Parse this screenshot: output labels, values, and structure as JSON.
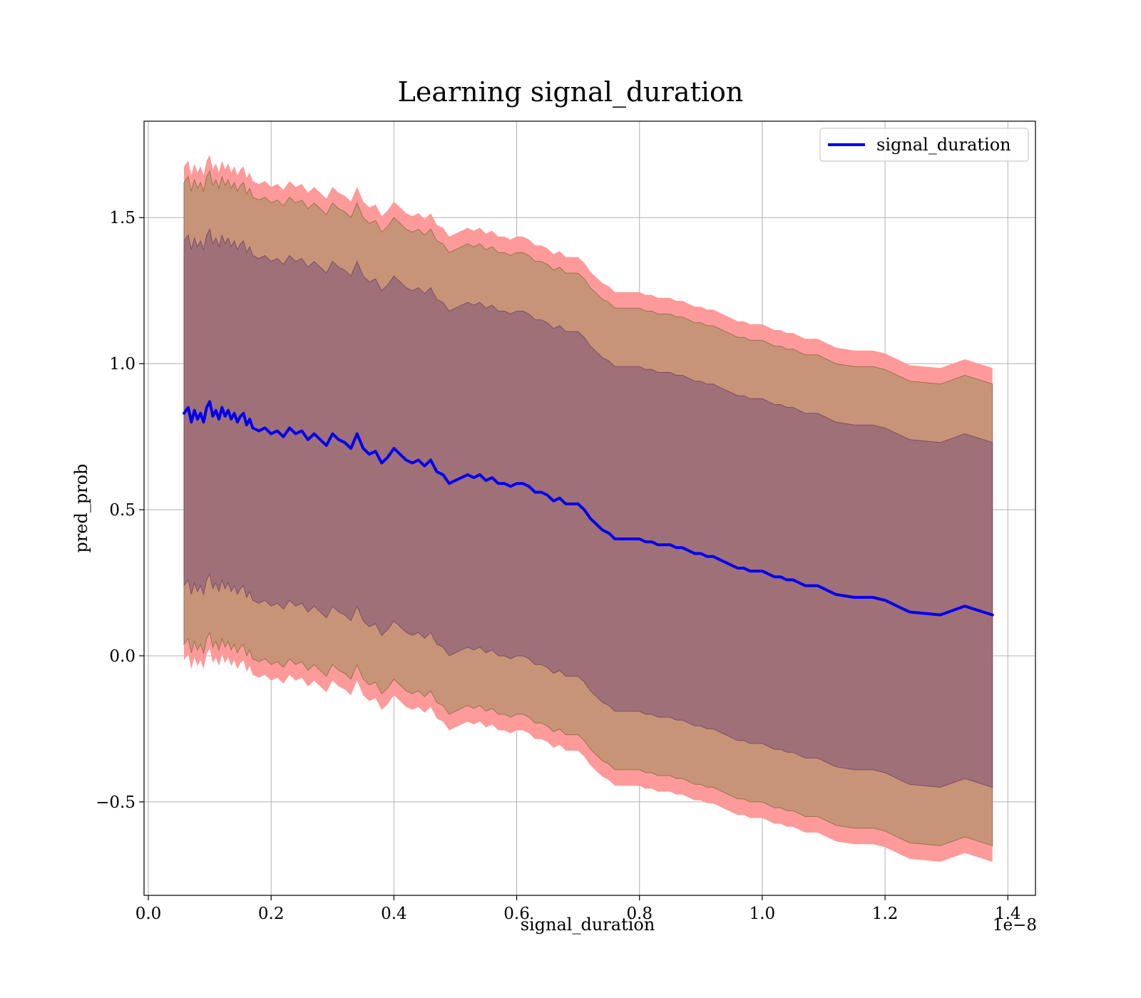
{
  "chart_data": {
    "type": "line",
    "title": "Learning signal_duration",
    "xlabel": "signal_duration",
    "ylabel": "pred_prob",
    "x_offset_label": "1e−8",
    "xlim": [
      -0.007,
      1.445
    ],
    "ylim": [
      -0.82,
      1.83
    ],
    "grid": true,
    "legend_position": "top-right",
    "x_ticks": [
      0.0,
      0.2,
      0.4,
      0.6,
      0.8,
      1.0,
      1.2,
      1.4
    ],
    "x_tick_labels": [
      "0.0",
      "0.2",
      "0.4",
      "0.6",
      "0.8",
      "1.0",
      "1.2",
      "1.4"
    ],
    "y_ticks": [
      -0.5,
      0.0,
      0.5,
      1.0,
      1.5
    ],
    "y_tick_labels": [
      "−0.5",
      "0.0",
      "0.5",
      "1.0",
      "1.5"
    ],
    "colors": {
      "line": "#0000ee",
      "band_outer": "#ff9a9a",
      "band_middle": "#c89478",
      "band_inner": "#a07078"
    },
    "series": [
      {
        "name": "signal_duration",
        "x": [
          0.058,
          0.065,
          0.07,
          0.075,
          0.08,
          0.085,
          0.09,
          0.095,
          0.1,
          0.105,
          0.11,
          0.115,
          0.12,
          0.125,
          0.13,
          0.135,
          0.14,
          0.145,
          0.15,
          0.155,
          0.16,
          0.165,
          0.17,
          0.18,
          0.19,
          0.2,
          0.21,
          0.22,
          0.23,
          0.24,
          0.25,
          0.26,
          0.27,
          0.28,
          0.29,
          0.3,
          0.31,
          0.32,
          0.33,
          0.34,
          0.35,
          0.36,
          0.37,
          0.38,
          0.39,
          0.4,
          0.41,
          0.42,
          0.43,
          0.44,
          0.45,
          0.46,
          0.47,
          0.48,
          0.49,
          0.5,
          0.51,
          0.52,
          0.53,
          0.54,
          0.55,
          0.56,
          0.57,
          0.58,
          0.59,
          0.6,
          0.61,
          0.62,
          0.63,
          0.64,
          0.65,
          0.66,
          0.67,
          0.68,
          0.69,
          0.7,
          0.71,
          0.72,
          0.73,
          0.74,
          0.75,
          0.76,
          0.77,
          0.78,
          0.79,
          0.8,
          0.81,
          0.82,
          0.83,
          0.84,
          0.85,
          0.86,
          0.87,
          0.88,
          0.89,
          0.9,
          0.91,
          0.92,
          0.93,
          0.94,
          0.95,
          0.96,
          0.97,
          0.98,
          0.99,
          1.0,
          1.01,
          1.02,
          1.03,
          1.04,
          1.05,
          1.06,
          1.07,
          1.08,
          1.09,
          1.1,
          1.12,
          1.15,
          1.18,
          1.2,
          1.24,
          1.29,
          1.33,
          1.375
        ],
        "y": [
          0.83,
          0.85,
          0.8,
          0.84,
          0.81,
          0.83,
          0.8,
          0.85,
          0.87,
          0.82,
          0.84,
          0.81,
          0.85,
          0.82,
          0.84,
          0.81,
          0.83,
          0.8,
          0.82,
          0.83,
          0.79,
          0.81,
          0.78,
          0.77,
          0.78,
          0.76,
          0.77,
          0.75,
          0.78,
          0.76,
          0.77,
          0.74,
          0.76,
          0.74,
          0.72,
          0.76,
          0.74,
          0.73,
          0.71,
          0.76,
          0.71,
          0.69,
          0.7,
          0.66,
          0.68,
          0.71,
          0.69,
          0.67,
          0.66,
          0.67,
          0.65,
          0.67,
          0.63,
          0.62,
          0.59,
          0.6,
          0.61,
          0.62,
          0.61,
          0.62,
          0.6,
          0.61,
          0.59,
          0.59,
          0.58,
          0.59,
          0.59,
          0.58,
          0.56,
          0.56,
          0.55,
          0.53,
          0.54,
          0.52,
          0.52,
          0.52,
          0.5,
          0.47,
          0.45,
          0.43,
          0.42,
          0.4,
          0.4,
          0.4,
          0.4,
          0.4,
          0.39,
          0.39,
          0.38,
          0.38,
          0.38,
          0.37,
          0.37,
          0.36,
          0.35,
          0.35,
          0.34,
          0.34,
          0.33,
          0.32,
          0.31,
          0.3,
          0.3,
          0.29,
          0.29,
          0.29,
          0.28,
          0.27,
          0.27,
          0.26,
          0.26,
          0.25,
          0.24,
          0.24,
          0.24,
          0.23,
          0.21,
          0.2,
          0.2,
          0.19,
          0.15,
          0.14,
          0.17,
          0.14
        ],
        "spread": {
          "inner": [
            0.59,
            0.59,
            0.59,
            0.59,
            0.59,
            0.59,
            0.59,
            0.59,
            0.59,
            0.59,
            0.59,
            0.59,
            0.59,
            0.59,
            0.59,
            0.59,
            0.59,
            0.59,
            0.59,
            0.59,
            0.59,
            0.59,
            0.59,
            0.59,
            0.59,
            0.59,
            0.59,
            0.59,
            0.59,
            0.59,
            0.59,
            0.59,
            0.59,
            0.59,
            0.59,
            0.59,
            0.59,
            0.59,
            0.59,
            0.59,
            0.59,
            0.59,
            0.59,
            0.59,
            0.59,
            0.59,
            0.59,
            0.59,
            0.59,
            0.59,
            0.59,
            0.59,
            0.59,
            0.59,
            0.59,
            0.59,
            0.59,
            0.59,
            0.59,
            0.59,
            0.59,
            0.59,
            0.59,
            0.59,
            0.59,
            0.59,
            0.59,
            0.59,
            0.59,
            0.59,
            0.59,
            0.59,
            0.59,
            0.59,
            0.59,
            0.59,
            0.59,
            0.59,
            0.59,
            0.59,
            0.59,
            0.59,
            0.59,
            0.59,
            0.59,
            0.59,
            0.59,
            0.59,
            0.59,
            0.59,
            0.59,
            0.59,
            0.59,
            0.59,
            0.59,
            0.59,
            0.59,
            0.59,
            0.59,
            0.59,
            0.59,
            0.59,
            0.59,
            0.59,
            0.59,
            0.59,
            0.59,
            0.59,
            0.59,
            0.59,
            0.59,
            0.59,
            0.59,
            0.59,
            0.59,
            0.59,
            0.59,
            0.59,
            0.59,
            0.59,
            0.59,
            0.59,
            0.59,
            0.59
          ],
          "middle": [
            0.79,
            0.79,
            0.79,
            0.79,
            0.79,
            0.79,
            0.79,
            0.79,
            0.79,
            0.79,
            0.79,
            0.79,
            0.79,
            0.79,
            0.79,
            0.79,
            0.79,
            0.79,
            0.79,
            0.79,
            0.79,
            0.79,
            0.79,
            0.79,
            0.79,
            0.79,
            0.79,
            0.79,
            0.79,
            0.79,
            0.79,
            0.79,
            0.79,
            0.79,
            0.79,
            0.79,
            0.79,
            0.79,
            0.79,
            0.79,
            0.79,
            0.79,
            0.79,
            0.79,
            0.79,
            0.79,
            0.79,
            0.79,
            0.79,
            0.79,
            0.79,
            0.79,
            0.79,
            0.79,
            0.79,
            0.79,
            0.79,
            0.79,
            0.79,
            0.79,
            0.79,
            0.79,
            0.79,
            0.79,
            0.79,
            0.79,
            0.79,
            0.79,
            0.79,
            0.79,
            0.79,
            0.79,
            0.79,
            0.79,
            0.79,
            0.79,
            0.79,
            0.79,
            0.79,
            0.79,
            0.79,
            0.79,
            0.79,
            0.79,
            0.79,
            0.79,
            0.79,
            0.79,
            0.79,
            0.79,
            0.79,
            0.79,
            0.79,
            0.79,
            0.79,
            0.79,
            0.79,
            0.79,
            0.79,
            0.79,
            0.79,
            0.79,
            0.79,
            0.79,
            0.79,
            0.79,
            0.79,
            0.79,
            0.79,
            0.79,
            0.79,
            0.79,
            0.79,
            0.79,
            0.79,
            0.79,
            0.79,
            0.79,
            0.79,
            0.79,
            0.79,
            0.79,
            0.79,
            0.79
          ],
          "outer": [
            0.845,
            0.845,
            0.845,
            0.845,
            0.845,
            0.845,
            0.845,
            0.845,
            0.845,
            0.845,
            0.845,
            0.845,
            0.845,
            0.845,
            0.845,
            0.845,
            0.845,
            0.845,
            0.845,
            0.845,
            0.845,
            0.845,
            0.845,
            0.845,
            0.845,
            0.845,
            0.845,
            0.845,
            0.845,
            0.845,
            0.845,
            0.845,
            0.845,
            0.845,
            0.845,
            0.845,
            0.845,
            0.845,
            0.845,
            0.845,
            0.845,
            0.845,
            0.845,
            0.845,
            0.845,
            0.845,
            0.845,
            0.845,
            0.845,
            0.845,
            0.845,
            0.845,
            0.845,
            0.845,
            0.845,
            0.845,
            0.845,
            0.845,
            0.845,
            0.845,
            0.845,
            0.845,
            0.845,
            0.845,
            0.845,
            0.845,
            0.845,
            0.845,
            0.845,
            0.845,
            0.845,
            0.845,
            0.845,
            0.845,
            0.845,
            0.845,
            0.845,
            0.845,
            0.845,
            0.845,
            0.845,
            0.845,
            0.845,
            0.845,
            0.845,
            0.845,
            0.845,
            0.845,
            0.845,
            0.845,
            0.845,
            0.845,
            0.845,
            0.845,
            0.845,
            0.845,
            0.845,
            0.845,
            0.845,
            0.845,
            0.845,
            0.845,
            0.845,
            0.845,
            0.845,
            0.845,
            0.845,
            0.845,
            0.845,
            0.845,
            0.845,
            0.845,
            0.845,
            0.845,
            0.845,
            0.845,
            0.845,
            0.845,
            0.845,
            0.845,
            0.845,
            0.845,
            0.845,
            0.845
          ]
        }
      }
    ]
  }
}
